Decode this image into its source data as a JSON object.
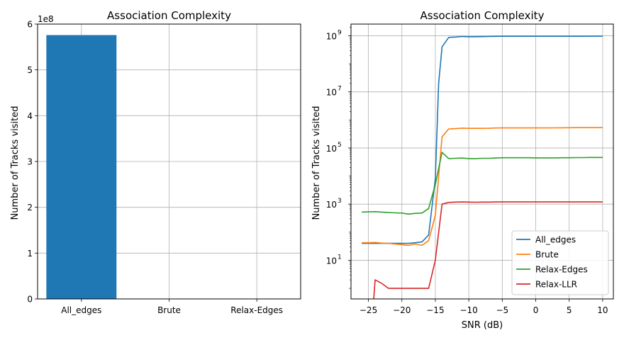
{
  "chart_data": [
    {
      "type": "bar",
      "title": "Association Complexity",
      "xlabel": "",
      "ylabel": "Number of Tracks visited",
      "y_offset_label": "1e8",
      "categories": [
        "All_edges",
        "Brute",
        "Relax-Edges"
      ],
      "values": [
        576000000,
        500000,
        45000
      ],
      "ylim": [
        0,
        600000000
      ],
      "yticks": [
        0,
        100000000,
        200000000,
        300000000,
        400000000,
        500000000,
        600000000
      ],
      "ytick_labels": [
        "0",
        "1",
        "2",
        "3",
        "4",
        "5",
        "6"
      ],
      "grid": true,
      "bar_color": "#1f77b4"
    },
    {
      "type": "line",
      "title": "Association Complexity",
      "xlabel": "SNR (dB)",
      "ylabel": "Number of Tracks visited",
      "yscale": "log",
      "xlim": [
        -27.6,
        11.6
      ],
      "ylim": [
        0.42,
        2600000000
      ],
      "xticks": [
        -25,
        -20,
        -15,
        -10,
        -5,
        0,
        5,
        10
      ],
      "xtick_labels": [
        "−25",
        "−20",
        "−15",
        "−10",
        "−5",
        "0",
        "5",
        "10"
      ],
      "yticks": [
        10,
        1000,
        100000,
        10000000,
        1000000000
      ],
      "ytick_labels": [
        {
          "base": "10",
          "exp": "1"
        },
        {
          "base": "10",
          "exp": "3"
        },
        {
          "base": "10",
          "exp": "5"
        },
        {
          "base": "10",
          "exp": "7"
        },
        {
          "base": "10",
          "exp": "9"
        }
      ],
      "grid": true,
      "legend_position": "lower-right",
      "series": [
        {
          "name": "All_edges",
          "color": "#1f77b4",
          "x": [
            -26,
            -25,
            -24,
            -23,
            -22,
            -21,
            -20,
            -19,
            -18,
            -17,
            -16,
            -15,
            -14.5,
            -14,
            -13,
            -12,
            -11,
            -10,
            -9,
            -8,
            -7,
            -6,
            -5,
            -4,
            -3,
            -2,
            -1,
            0,
            1,
            2,
            3,
            4,
            5,
            6,
            7,
            8,
            9,
            10
          ],
          "y": [
            40,
            40,
            40,
            40,
            40,
            40,
            40,
            40,
            42,
            45,
            80,
            8000,
            20000000,
            400000000,
            870000000,
            900000000,
            940000000,
            920000000,
            925000000,
            930000000,
            940000000,
            950000000,
            955000000,
            955000000,
            955000000,
            955000000,
            955000000,
            955000000,
            955000000,
            955000000,
            955000000,
            955000000,
            958000000,
            958000000,
            958000000,
            960000000,
            960000000,
            962000000
          ]
        },
        {
          "name": "Brute",
          "color": "#ff7f0e",
          "x": [
            -26,
            -25,
            -24,
            -23,
            -22,
            -21,
            -20,
            -19,
            -18,
            -17,
            -16,
            -15,
            -14,
            -13,
            -12,
            -11,
            -10,
            -9,
            -8,
            -7,
            -6,
            -5,
            -4,
            -3,
            -2,
            -1,
            0,
            1,
            2,
            3,
            4,
            5,
            6,
            7,
            8,
            9,
            10
          ],
          "y": [
            42,
            42,
            43,
            41,
            40,
            38,
            36,
            34,
            38,
            34,
            50,
            400,
            250000,
            480000,
            490000,
            510000,
            500000,
            500000,
            500000,
            505000,
            515000,
            520000,
            520000,
            520000,
            520000,
            520000,
            520000,
            520000,
            520000,
            522000,
            525000,
            528000,
            530000,
            532000,
            532000,
            532000,
            532000
          ],
          "drop_to_bottom": false
        },
        {
          "name": "Relax-Edges",
          "color": "#2ca02c",
          "x": [
            -26,
            -25,
            -24,
            -23,
            -22,
            -21,
            -20,
            -19,
            -18,
            -17,
            -16,
            -15,
            -14,
            -13,
            -12,
            -11,
            -10,
            -9,
            -8,
            -7,
            -6,
            -5,
            -4,
            -3,
            -2,
            -1,
            0,
            1,
            2,
            3,
            4,
            5,
            6,
            7,
            8,
            9,
            10
          ],
          "y": [
            520,
            530,
            540,
            520,
            500,
            490,
            480,
            440,
            470,
            480,
            700,
            5000,
            70000,
            42000,
            43000,
            44000,
            42000,
            42000,
            43000,
            43000,
            44000,
            45000,
            45000,
            45000,
            45000,
            45000,
            44500,
            44500,
            44500,
            44500,
            45000,
            45000,
            45500,
            45500,
            46000,
            46000,
            46000
          ]
        },
        {
          "name": "Relax-LLR",
          "color": "#d62728",
          "x": [
            -24.2,
            -24,
            -23,
            -22,
            -21,
            -20,
            -19,
            -18,
            -17,
            -16,
            -15,
            -14,
            -13,
            -12,
            -11,
            -10,
            -9,
            -8,
            -7,
            -6,
            -5,
            -4,
            -3,
            -2,
            -1,
            0,
            1,
            2,
            3,
            4,
            5,
            6,
            7,
            8,
            9,
            10
          ],
          "y": [
            0.42,
            2,
            1.5,
            1,
            1,
            1,
            1,
            1,
            1,
            1,
            10,
            1000,
            1150,
            1180,
            1200,
            1180,
            1170,
            1180,
            1180,
            1200,
            1200,
            1200,
            1200,
            1200,
            1200,
            1200,
            1200,
            1200,
            1200,
            1200,
            1200,
            1200,
            1200,
            1200,
            1200,
            1200
          ]
        }
      ]
    }
  ]
}
